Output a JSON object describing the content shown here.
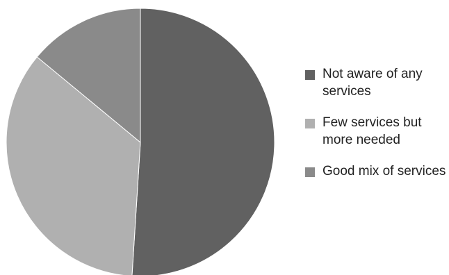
{
  "chart_data": {
    "type": "pie",
    "title": "",
    "start_angle_deg": 0,
    "direction": "clockwise",
    "slices": [
      {
        "label": "Not aware of any services",
        "value": 51,
        "color": "#616161"
      },
      {
        "label": "Few services but more needed",
        "value": 35,
        "color": "#b0b0b0"
      },
      {
        "label": "Good mix of services",
        "value": 14,
        "color": "#8a8a8a"
      }
    ],
    "legend_position": "right"
  }
}
